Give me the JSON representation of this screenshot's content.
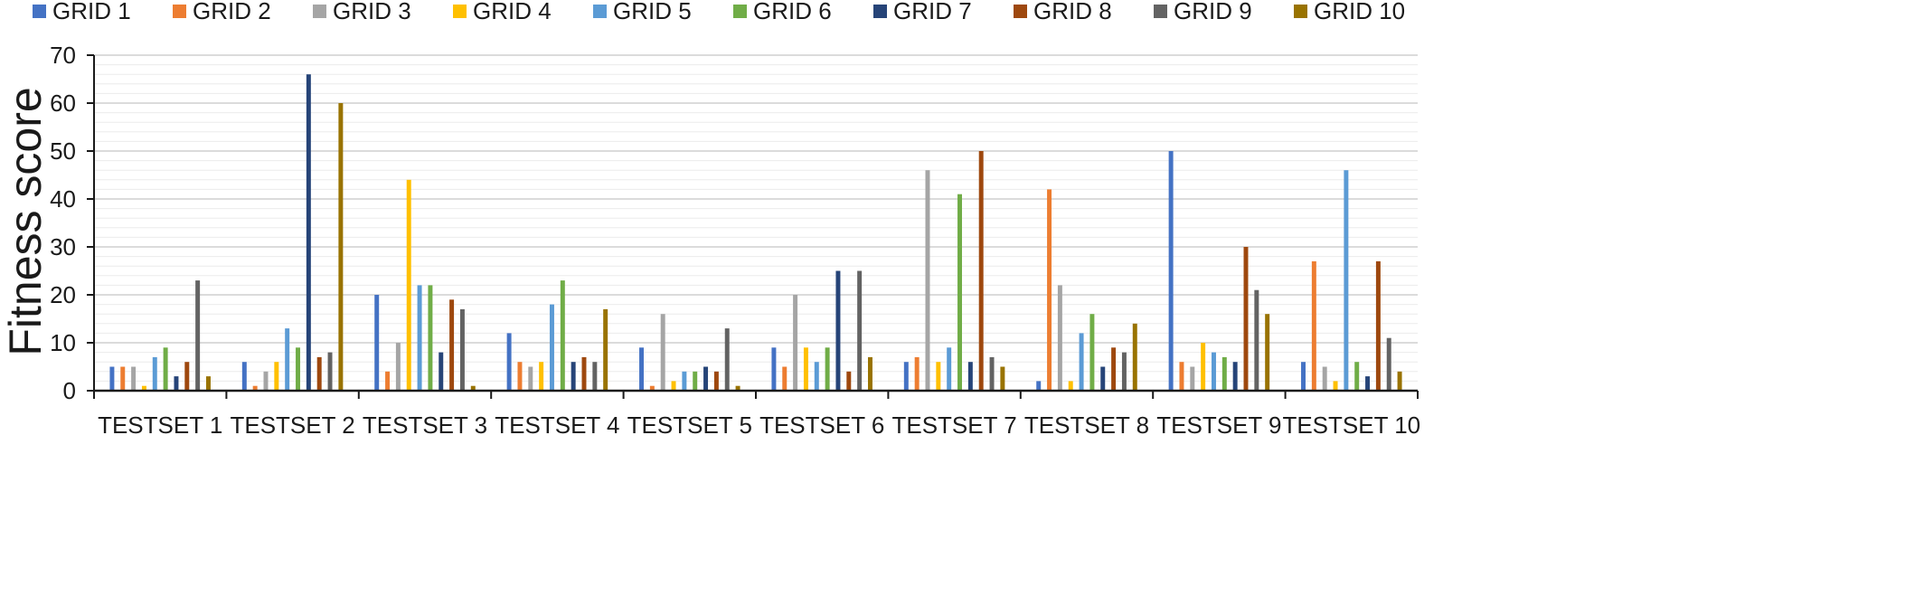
{
  "chart_data": {
    "type": "bar",
    "title": "",
    "xlabel": "",
    "ylabel": "Fitness score",
    "ylim": [
      0,
      70
    ],
    "yticks": [
      0,
      10,
      20,
      30,
      40,
      50,
      60,
      70
    ],
    "grid": true,
    "legend_position": "top",
    "categories": [
      "TESTSET 1",
      "TESTSET 2",
      "TESTSET 3",
      "TESTSET 4",
      "TESTSET 5",
      "TESTSET 6",
      "TESTSET 7",
      "TESTSET 8",
      "TESTSET 9",
      "TESTSET 10"
    ],
    "series": [
      {
        "name": "GRID 1",
        "color": "#4472C4",
        "values": [
          5,
          6,
          20,
          12,
          9,
          9,
          6,
          2,
          50,
          6
        ]
      },
      {
        "name": "GRID 2",
        "color": "#ED7D31",
        "values": [
          5,
          1,
          4,
          6,
          1,
          5,
          7,
          42,
          6,
          27
        ]
      },
      {
        "name": "GRID 3",
        "color": "#A5A5A5",
        "values": [
          5,
          4,
          10,
          5,
          16,
          20,
          46,
          22,
          5,
          5
        ]
      },
      {
        "name": "GRID 4",
        "color": "#FFC000",
        "values": [
          1,
          6,
          44,
          6,
          2,
          9,
          6,
          2,
          10,
          2
        ]
      },
      {
        "name": "GRID 5",
        "color": "#5B9BD5",
        "values": [
          7,
          13,
          22,
          18,
          4,
          6,
          9,
          12,
          8,
          46
        ]
      },
      {
        "name": "GRID 6",
        "color": "#70AD47",
        "values": [
          9,
          9,
          22,
          23,
          4,
          9,
          41,
          16,
          7,
          6
        ]
      },
      {
        "name": "GRID 7",
        "color": "#264478",
        "values": [
          3,
          66,
          8,
          6,
          5,
          25,
          6,
          5,
          6,
          3
        ]
      },
      {
        "name": "GRID 8",
        "color": "#9E480E",
        "values": [
          6,
          7,
          19,
          7,
          4,
          4,
          50,
          9,
          30,
          27
        ]
      },
      {
        "name": "GRID 9",
        "color": "#636363",
        "values": [
          23,
          8,
          17,
          6,
          13,
          25,
          7,
          8,
          21,
          11
        ]
      },
      {
        "name": "GRID 10",
        "color": "#997300",
        "values": [
          3,
          60,
          1,
          17,
          1,
          7,
          5,
          14,
          16,
          4
        ]
      }
    ]
  }
}
